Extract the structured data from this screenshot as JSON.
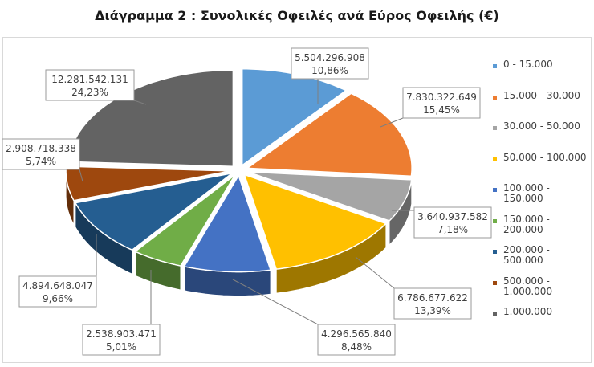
{
  "chart_data": {
    "type": "pie",
    "title": "Διάγραμμα 2 : Συνολικές Οφειλές ανά Εύρος Οφειλής (€)",
    "legend_position": "right",
    "categories": [
      "0 - 15.000",
      "15.000 - 30.000",
      "30.000 - 50.000",
      "50.000 - 100.000",
      "100.000 - 150.000",
      "150.000 - 200.000",
      "200.000 - 500.000",
      "500.000 - 1.000.000",
      "1.000.000 -"
    ],
    "values": [
      5504296908,
      7830322649,
      3640937582,
      6786677622,
      4296565840,
      2538903471,
      4894648047,
      2908718338,
      12281542131
    ],
    "value_labels": [
      "5.504.296.908",
      "7.830.322.649",
      "3.640.937.582",
      "6.786.677.622",
      "4.296.565.840",
      "2.538.903.471",
      "4.894.648.047",
      "2.908.718.338",
      "12.281.542.131"
    ],
    "percent_labels": [
      "10,86%",
      "15,45%",
      "7,18%",
      "13,39%",
      "8,48%",
      "5,01%",
      "9,66%",
      "5,74%",
      "24,23%"
    ],
    "colors": [
      "#5b9bd5",
      "#ed7d31",
      "#a5a5a5",
      "#ffc000",
      "#4472c4",
      "#70ad47",
      "#255e91",
      "#9e480e",
      "#636363"
    ]
  }
}
